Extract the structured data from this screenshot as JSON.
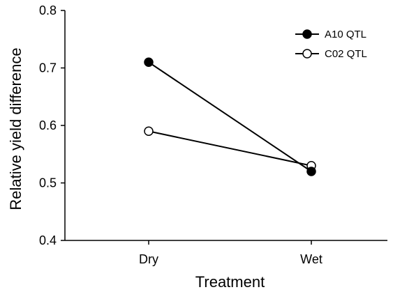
{
  "chart_data": {
    "type": "line",
    "categories": [
      "Dry",
      "Wet"
    ],
    "xlabel": "Treatment",
    "ylabel": "Relative yield difference",
    "ylim": [
      0.4,
      0.8
    ],
    "yticks": [
      "0.4",
      "0.5",
      "0.6",
      "0.7",
      "0.8"
    ],
    "grid": false,
    "legend_position": "top-right",
    "series": [
      {
        "name": "A10 QTL",
        "values": [
          0.71,
          0.52
        ],
        "marker": "filled-circle",
        "color": "#000000"
      },
      {
        "name": "C02 QTL",
        "values": [
          0.59,
          0.53
        ],
        "marker": "open-circle",
        "color": "#000000"
      }
    ]
  }
}
